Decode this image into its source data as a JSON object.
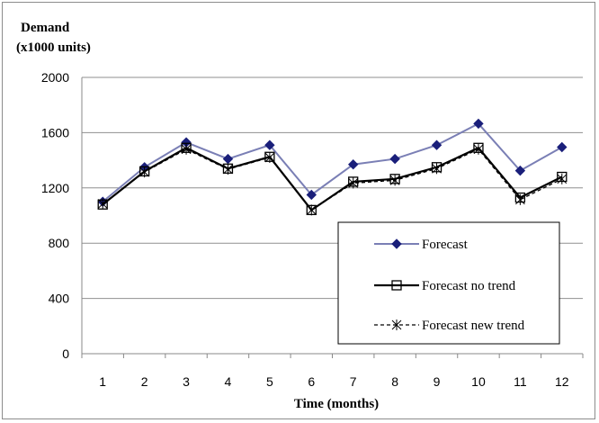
{
  "chart_data": {
    "type": "line",
    "ylabel_line1": "Demand",
    "ylabel_line2": "(x1000 units)",
    "xlabel": "Time (months)",
    "categories": [
      "1",
      "2",
      "3",
      "4",
      "5",
      "6",
      "7",
      "8",
      "9",
      "10",
      "11",
      "12"
    ],
    "ylim": [
      0,
      2000
    ],
    "yticks": [
      "0",
      "400",
      "800",
      "1200",
      "1600",
      "2000"
    ],
    "ytick_values": [
      0,
      400,
      800,
      1200,
      1600,
      2000
    ],
    "grid": true,
    "legend_position": "bottom-right",
    "series": [
      {
        "name": "Forecast",
        "values": [
          1100,
          1350,
          1530,
          1410,
          1510,
          1150,
          1370,
          1410,
          1510,
          1665,
          1325,
          1495
        ],
        "color": "#7a7fb5",
        "marker": "diamond",
        "marker_color": "#1a1f7a",
        "dash": "solid"
      },
      {
        "name": "Forecast no trend",
        "values": [
          1080,
          1320,
          1490,
          1340,
          1425,
          1040,
          1245,
          1265,
          1350,
          1490,
          1130,
          1280
        ],
        "color": "#000000",
        "marker": "square",
        "marker_color": "#000000",
        "dash": "solid"
      },
      {
        "name": "Forecast new trend",
        "values": [
          1085,
          1315,
          1480,
          1335,
          1420,
          1040,
          1235,
          1255,
          1340,
          1480,
          1115,
          1265
        ],
        "color": "#000000",
        "marker": "asterisk",
        "marker_color": "#000000",
        "dash": "dashed"
      }
    ]
  }
}
